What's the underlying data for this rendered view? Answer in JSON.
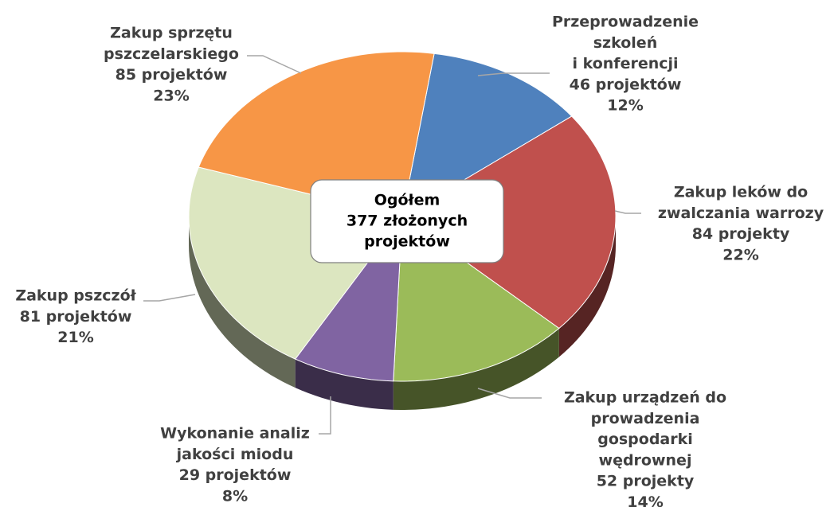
{
  "chart_data": {
    "type": "pie",
    "categories": [
      [
        "Przeprowadzenie",
        "szkoleń",
        "i konferencji"
      ],
      [
        "Zakup leków do",
        "zwalczania warrozy"
      ],
      [
        "Zakup urządzeń do",
        "prowadzenia",
        "gospodarki",
        "wędrownej"
      ],
      [
        "Wykonanie analiz",
        "jakości miodu"
      ],
      [
        "Zakup pszczół"
      ],
      [
        "Zakup sprzętu",
        "pszczelarskiego"
      ]
    ],
    "values": [
      46,
      84,
      52,
      29,
      81,
      85
    ],
    "value_labels": [
      "46 projektów",
      "84 projekty",
      "52 projekty",
      "29 projektów",
      "81 projektów",
      "85 projektów"
    ],
    "percentages": [
      12,
      22,
      14,
      8,
      21,
      23
    ],
    "percentage_labels": [
      "12%",
      "22%",
      "14%",
      "8%",
      "21%",
      "23%"
    ],
    "colors": [
      "#4f81bd",
      "#c0504d",
      "#9bbb59",
      "#8064a2",
      "#dce6c0",
      "#f79646"
    ],
    "center_label": [
      "Ogółem",
      "377 złożonych",
      "projektów"
    ]
  }
}
